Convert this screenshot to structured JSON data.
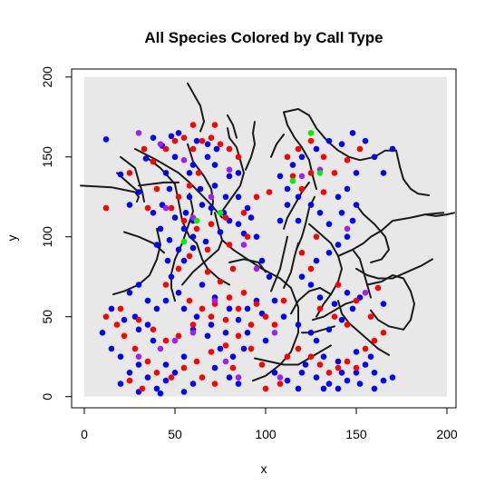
{
  "chart_data": {
    "type": "scatter",
    "title": "All Species Colored by Call Type",
    "xlabel": "x",
    "ylabel": "y",
    "xlim": [
      -7,
      205
    ],
    "ylim": [
      -7,
      205
    ],
    "x_ticks": [
      "0",
      "50",
      "100",
      "150",
      "200"
    ],
    "y_ticks": [
      "0",
      "50",
      "100",
      "150",
      "200"
    ],
    "x_tick_values": [
      0,
      50,
      100,
      150,
      200
    ],
    "y_tick_values": [
      0,
      50,
      100,
      150,
      200
    ],
    "background_region": {
      "x": [
        0,
        200
      ],
      "y": [
        0,
        200
      ],
      "fill": "#e8e8e8"
    },
    "grid": false,
    "legend": "none",
    "colors": {
      "blue": "#0000ff",
      "red": "#ff0000",
      "purple": "#a020f0",
      "green": "#00ee00",
      "stream": "#1a1a1a",
      "stream_highlight": "#3a9a3a"
    },
    "series": [
      {
        "color": "blue",
        "points": [
          [
            12,
            161
          ],
          [
            20,
            139
          ],
          [
            25,
            120
          ],
          [
            30,
            128
          ],
          [
            34,
            149
          ],
          [
            38,
            162
          ],
          [
            43,
            157
          ],
          [
            48,
            163
          ],
          [
            52,
            165
          ],
          [
            58,
            140
          ],
          [
            47,
            130
          ],
          [
            43,
            120
          ],
          [
            50,
            112
          ],
          [
            55,
            105
          ],
          [
            60,
            110
          ],
          [
            38,
            115
          ],
          [
            42,
            105
          ],
          [
            47,
            98
          ],
          [
            52,
            92
          ],
          [
            60,
            93
          ],
          [
            67,
            97
          ],
          [
            75,
            103
          ],
          [
            80,
            110
          ],
          [
            85,
            125
          ],
          [
            90,
            118
          ],
          [
            78,
            125
          ],
          [
            72,
            132
          ],
          [
            80,
            138
          ],
          [
            85,
            140
          ],
          [
            70,
            118
          ],
          [
            65,
            120
          ],
          [
            56,
            115
          ],
          [
            45,
            140
          ],
          [
            50,
            150
          ],
          [
            60,
            145
          ],
          [
            68,
            150
          ],
          [
            73,
            155
          ],
          [
            85,
            108
          ],
          [
            88,
            102
          ],
          [
            60,
            100
          ],
          [
            55,
            85
          ],
          [
            48,
            75
          ],
          [
            52,
            65
          ],
          [
            45,
            60
          ],
          [
            40,
            55
          ],
          [
            55,
            55
          ],
          [
            62,
            50
          ],
          [
            70,
            45
          ],
          [
            78,
            40
          ],
          [
            85,
            48
          ],
          [
            90,
            55
          ],
          [
            95,
            60
          ],
          [
            98,
            52
          ],
          [
            88,
            30
          ],
          [
            82,
            25
          ],
          [
            75,
            30
          ],
          [
            68,
            38
          ],
          [
            60,
            42
          ],
          [
            55,
            25
          ],
          [
            50,
            15
          ],
          [
            45,
            10
          ],
          [
            40,
            5
          ],
          [
            35,
            12
          ],
          [
            30,
            20
          ],
          [
            25,
            15
          ],
          [
            20,
            8
          ],
          [
            30,
            3
          ],
          [
            42,
            2
          ],
          [
            55,
            3
          ],
          [
            60,
            8
          ],
          [
            45,
            20
          ],
          [
            38,
            35
          ],
          [
            30,
            42
          ],
          [
            22,
            48
          ],
          [
            15,
            55
          ],
          [
            10,
            40
          ],
          [
            15,
            30
          ],
          [
            20,
            25
          ],
          [
            28,
            50
          ],
          [
            35,
            45
          ],
          [
            72,
            18
          ],
          [
            80,
            12
          ],
          [
            85,
            8
          ],
          [
            65,
            70
          ],
          [
            72,
            62
          ],
          [
            80,
            55
          ],
          [
            90,
            40
          ],
          [
            100,
            35
          ],
          [
            105,
            15
          ],
          [
            112,
            10
          ],
          [
            118,
            5
          ],
          [
            122,
            20
          ],
          [
            128,
            12
          ],
          [
            135,
            8
          ],
          [
            140,
            5
          ],
          [
            145,
            10
          ],
          [
            150,
            15
          ],
          [
            155,
            20
          ],
          [
            160,
            15
          ],
          [
            165,
            10
          ],
          [
            158,
            25
          ],
          [
            150,
            28
          ],
          [
            140,
            22
          ],
          [
            132,
            25
          ],
          [
            128,
            35
          ],
          [
            135,
            42
          ],
          [
            142,
            48
          ],
          [
            148,
            55
          ],
          [
            152,
            62
          ],
          [
            145,
            65
          ],
          [
            138,
            58
          ],
          [
            130,
            62
          ],
          [
            125,
            70
          ],
          [
            120,
            75
          ],
          [
            128,
            85
          ],
          [
            135,
            90
          ],
          [
            140,
            95
          ],
          [
            145,
            100
          ],
          [
            148,
            110
          ],
          [
            142,
            115
          ],
          [
            135,
            108
          ],
          [
            130,
            115
          ],
          [
            125,
            120
          ],
          [
            118,
            125
          ],
          [
            112,
            130
          ],
          [
            108,
            138
          ],
          [
            115,
            145
          ],
          [
            120,
            150
          ],
          [
            128,
            155
          ],
          [
            135,
            160
          ],
          [
            142,
            158
          ],
          [
            148,
            165
          ],
          [
            155,
            160
          ],
          [
            160,
            150
          ],
          [
            165,
            140
          ],
          [
            170,
            155
          ],
          [
            150,
            140
          ],
          [
            145,
            130
          ],
          [
            140,
            125
          ],
          [
            150,
            120
          ],
          [
            118,
            110
          ],
          [
            112,
            120
          ],
          [
            108,
            110
          ],
          [
            102,
            75
          ],
          [
            98,
            85
          ],
          [
            105,
            60
          ],
          [
            110,
            50
          ],
          [
            118,
            45
          ],
          [
            125,
            40
          ],
          [
            165,
            58
          ],
          [
            170,
            12
          ],
          [
            160,
            5
          ],
          [
            25,
            65
          ],
          [
            30,
            70
          ],
          [
            35,
            60
          ],
          [
            62,
            160
          ],
          [
            68,
            158
          ],
          [
            72,
            145
          ],
          [
            64,
            130
          ],
          [
            58,
            125
          ],
          [
            77,
            115
          ],
          [
            92,
            112
          ],
          [
            95,
            100
          ],
          [
            40,
            95
          ],
          [
            46,
            85
          ],
          [
            120,
            15
          ],
          [
            132,
            5
          ],
          [
            142,
            15
          ],
          [
            152,
            8
          ]
        ]
      },
      {
        "color": "red",
        "points": [
          [
            12,
            118
          ],
          [
            25,
            140
          ],
          [
            33,
            155
          ],
          [
            38,
            147
          ],
          [
            45,
            155
          ],
          [
            50,
            160
          ],
          [
            55,
            162
          ],
          [
            60,
            155
          ],
          [
            65,
            160
          ],
          [
            70,
            162
          ],
          [
            75,
            158
          ],
          [
            80,
            155
          ],
          [
            85,
            150
          ],
          [
            63,
            140
          ],
          [
            58,
            132
          ],
          [
            52,
            125
          ],
          [
            48,
            118
          ],
          [
            55,
            110
          ],
          [
            62,
            105
          ],
          [
            70,
            108
          ],
          [
            78,
            112
          ],
          [
            88,
            115
          ],
          [
            95,
            125
          ],
          [
            102,
            128
          ],
          [
            90,
            100
          ],
          [
            80,
            95
          ],
          [
            68,
            92
          ],
          [
            58,
            88
          ],
          [
            52,
            80
          ],
          [
            45,
            70
          ],
          [
            58,
            60
          ],
          [
            65,
            55
          ],
          [
            72,
            58
          ],
          [
            80,
            62
          ],
          [
            88,
            65
          ],
          [
            95,
            58
          ],
          [
            100,
            50
          ],
          [
            92,
            45
          ],
          [
            85,
            38
          ],
          [
            78,
            32
          ],
          [
            70,
            28
          ],
          [
            62,
            22
          ],
          [
            55,
            18
          ],
          [
            48,
            12
          ],
          [
            40,
            15
          ],
          [
            35,
            22
          ],
          [
            28,
            30
          ],
          [
            22,
            38
          ],
          [
            18,
            45
          ],
          [
            12,
            50
          ],
          [
            20,
            55
          ],
          [
            30,
            48
          ],
          [
            38,
            42
          ],
          [
            45,
            35
          ],
          [
            52,
            38
          ],
          [
            60,
            45
          ],
          [
            70,
            50
          ],
          [
            78,
            48
          ],
          [
            85,
            55
          ],
          [
            92,
            30
          ],
          [
            98,
            20
          ],
          [
            105,
            45
          ],
          [
            110,
            60
          ],
          [
            112,
            25
          ],
          [
            118,
            30
          ],
          [
            125,
            25
          ],
          [
            130,
            20
          ],
          [
            135,
            15
          ],
          [
            140,
            18
          ],
          [
            145,
            22
          ],
          [
            150,
            18
          ],
          [
            155,
            30
          ],
          [
            160,
            35
          ],
          [
            165,
            40
          ],
          [
            145,
            45
          ],
          [
            138,
            50
          ],
          [
            130,
            55
          ],
          [
            140,
            70
          ],
          [
            150,
            60
          ],
          [
            158,
            50
          ],
          [
            162,
            68
          ],
          [
            125,
            80
          ],
          [
            120,
            90
          ],
          [
            128,
            100
          ],
          [
            132,
            128
          ],
          [
            125,
            140
          ],
          [
            118,
            155
          ],
          [
            125,
            160
          ],
          [
            132,
            150
          ],
          [
            138,
            140
          ],
          [
            145,
            148
          ],
          [
            152,
            155
          ],
          [
            115,
            138
          ],
          [
            112,
            150
          ],
          [
            120,
            130
          ],
          [
            60,
            170
          ],
          [
            72,
            170
          ],
          [
            40,
            130
          ],
          [
            35,
            118
          ],
          [
            68,
            78
          ],
          [
            75,
            72
          ],
          [
            82,
            80
          ],
          [
            25,
            10
          ],
          [
            32,
            5
          ],
          [
            65,
            12
          ],
          [
            72,
            8
          ],
          [
            82,
            18
          ],
          [
            100,
            5
          ],
          [
            108,
            8
          ]
        ]
      },
      {
        "color": "purple",
        "points": [
          [
            30,
            165
          ],
          [
            42,
            158
          ],
          [
            55,
            148
          ],
          [
            80,
            142
          ],
          [
            70,
            125
          ],
          [
            60,
            112
          ],
          [
            45,
            118
          ],
          [
            88,
            95
          ],
          [
            72,
            60
          ],
          [
            60,
            40
          ],
          [
            50,
            35
          ],
          [
            42,
            30
          ],
          [
            30,
            25
          ],
          [
            105,
            40
          ],
          [
            108,
            12
          ],
          [
            120,
            138
          ],
          [
            130,
            142
          ],
          [
            145,
            105
          ],
          [
            155,
            65
          ],
          [
            95,
            80
          ],
          [
            78,
            22
          ],
          [
            85,
            12
          ]
        ]
      },
      {
        "color": "green",
        "points": [
          [
            125,
            165
          ],
          [
            130,
            140
          ],
          [
            115,
            135
          ],
          [
            55,
            97
          ],
          [
            62,
            110
          ],
          [
            75,
            115
          ]
        ]
      }
    ]
  }
}
